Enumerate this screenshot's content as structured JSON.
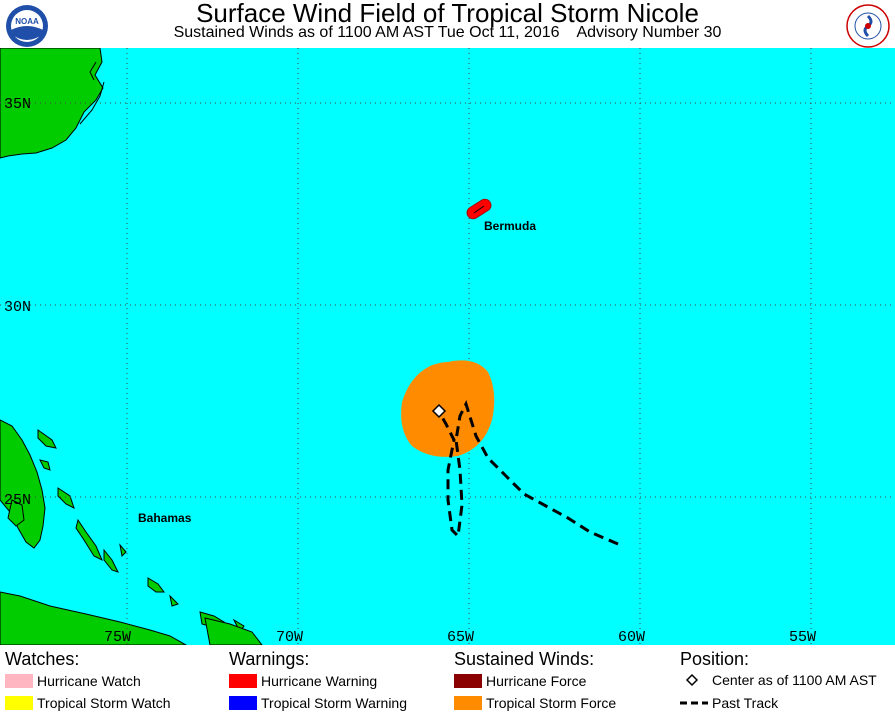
{
  "header": {
    "title": "Surface Wind Field of Tropical Storm Nicole",
    "subtitle": "Sustained Winds as of 1100 AM AST Tue Oct 11, 2016    Advisory Number 30",
    "left_logo": "NOAA",
    "right_logo": "NATIONAL WEATHER SERVICE"
  },
  "map": {
    "lat_labels": [
      "35N",
      "30N",
      "25N"
    ],
    "lon_labels": [
      "75W",
      "70W",
      "65W",
      "60W",
      "55W"
    ],
    "places": {
      "bermuda": "Bermuda",
      "bahamas": "Bahamas"
    },
    "colors": {
      "ocean": "#00FFFF",
      "land": "#00CC00",
      "tropical_storm_force": "#FF8C00",
      "bermuda_warning": "#FF0000"
    }
  },
  "legend": {
    "watches": {
      "heading": "Watches:",
      "items": [
        {
          "label": "Hurricane Watch",
          "color": "#FFB6C1"
        },
        {
          "label": "Tropical Storm Watch",
          "color": "#FFFF00"
        }
      ]
    },
    "warnings": {
      "heading": "Warnings:",
      "items": [
        {
          "label": "Hurricane Warning",
          "color": "#FF0000"
        },
        {
          "label": "Tropical Storm Warning",
          "color": "#0000FF"
        }
      ]
    },
    "winds": {
      "heading": "Sustained Winds:",
      "items": [
        {
          "label": "Hurricane Force",
          "color": "#8B0000"
        },
        {
          "label": "Tropical Storm Force",
          "color": "#FF8C00"
        }
      ]
    },
    "position": {
      "heading": "Position:",
      "center_label": "Center as of 1100 AM AST",
      "track_label": "Past Track"
    }
  }
}
